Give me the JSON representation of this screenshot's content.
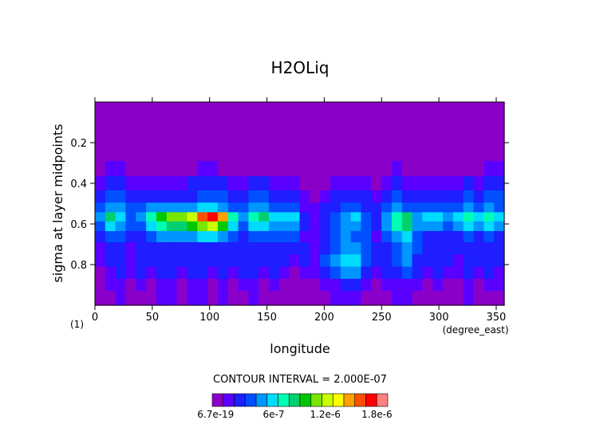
{
  "chart_data": {
    "type": "heatmap",
    "title": "H2OLiq",
    "xlabel": "longitude",
    "x_unit": "(degree_east)",
    "ylabel": "sigma at layer midpoints",
    "corner_label": "(1)",
    "xlim": [
      0,
      357
    ],
    "ylim": [
      0.0,
      1.0
    ],
    "y_inverted": true,
    "x_ticks": [
      0,
      50,
      100,
      150,
      200,
      250,
      300,
      350
    ],
    "y_ticks": [
      0.2,
      0.4,
      0.6,
      0.8
    ],
    "contour_note": "CONTOUR INTERVAL = 2.000E-07",
    "colorbar": {
      "tick_labels": [
        "6.7e-19",
        "6e-7",
        "1.2e-6",
        "1.8e-6"
      ],
      "colors": [
        "#8b00c8",
        "#5a00ff",
        "#1e1eff",
        "#0050ff",
        "#0096ff",
        "#00dcff",
        "#00ffb4",
        "#00d070",
        "#00c800",
        "#78e600",
        "#c8ff00",
        "#ffff00",
        "#ffa000",
        "#ff5000",
        "#ff0000",
        "#ff8080"
      ]
    },
    "levels": [
      {
        "sigma": 0.05,
        "values": [
          0,
          0,
          0,
          0,
          0,
          0,
          0,
          0,
          0,
          0,
          0,
          0,
          0,
          0,
          0,
          0,
          0,
          0,
          0,
          0,
          0,
          0,
          0,
          0,
          0,
          0,
          0,
          0,
          0,
          0,
          0,
          0,
          0,
          0,
          0,
          0,
          0,
          0,
          0,
          0
        ]
      },
      {
        "sigma": 0.15,
        "values": [
          0,
          0,
          0,
          0,
          0,
          0,
          0,
          0,
          0,
          0,
          0,
          0,
          0,
          0,
          0,
          0,
          0,
          0,
          0,
          0,
          0,
          0,
          0,
          0,
          0,
          0,
          0,
          0,
          0,
          0,
          0,
          0,
          0,
          0,
          0,
          0,
          0,
          0,
          0,
          0
        ]
      },
      {
        "sigma": 0.25,
        "values": [
          0,
          0,
          0,
          0,
          0,
          0,
          0,
          0,
          0,
          0,
          0,
          0,
          0,
          0,
          0,
          0,
          0,
          0,
          0,
          0,
          0,
          0,
          0,
          0,
          0,
          0,
          0,
          0,
          0,
          0,
          0,
          0,
          0,
          0,
          0,
          0,
          0,
          0,
          0,
          0
        ]
      },
      {
        "sigma": 0.33,
        "values": [
          0,
          1,
          1,
          0,
          0,
          0,
          0,
          0,
          0,
          0,
          1,
          1,
          0,
          0,
          0,
          0,
          0,
          0,
          0,
          0,
          0,
          0,
          0,
          0,
          0,
          0,
          0,
          0,
          0,
          1,
          0,
          0,
          0,
          0,
          0,
          0,
          0,
          0,
          1,
          1
        ]
      },
      {
        "sigma": 0.4,
        "values": [
          1,
          2,
          2,
          1,
          1,
          1,
          1,
          1,
          1,
          2,
          2,
          2,
          2,
          1,
          1,
          2,
          2,
          1,
          1,
          1,
          0,
          0,
          0,
          1,
          1,
          1,
          1,
          0,
          1,
          2,
          1,
          1,
          1,
          1,
          1,
          1,
          2,
          1,
          2,
          2
        ]
      },
      {
        "sigma": 0.47,
        "values": [
          2,
          3,
          3,
          2,
          2,
          2,
          2,
          2,
          2,
          2,
          3,
          3,
          3,
          2,
          2,
          3,
          3,
          2,
          2,
          2,
          1,
          0,
          1,
          2,
          2,
          2,
          2,
          1,
          2,
          3,
          2,
          2,
          2,
          2,
          2,
          2,
          3,
          2,
          3,
          3
        ]
      },
      {
        "sigma": 0.52,
        "values": [
          3,
          4,
          4,
          3,
          3,
          4,
          4,
          4,
          4,
          4,
          5,
          5,
          4,
          3,
          3,
          4,
          4,
          3,
          3,
          3,
          1,
          1,
          2,
          2,
          3,
          3,
          2,
          2,
          3,
          4,
          3,
          3,
          3,
          3,
          3,
          3,
          4,
          3,
          4,
          3
        ]
      },
      {
        "sigma": 0.565,
        "values": [
          4,
          7,
          5,
          3,
          4,
          6,
          8,
          9,
          9,
          10,
          13,
          14,
          12,
          6,
          4,
          6,
          7,
          5,
          5,
          5,
          2,
          1,
          2,
          3,
          4,
          5,
          3,
          2,
          4,
          6,
          7,
          4,
          5,
          5,
          4,
          5,
          6,
          5,
          6,
          5
        ]
      },
      {
        "sigma": 0.61,
        "values": [
          3,
          5,
          4,
          3,
          3,
          5,
          6,
          7,
          7,
          8,
          9,
          10,
          8,
          5,
          3,
          5,
          5,
          4,
          4,
          4,
          2,
          1,
          2,
          3,
          4,
          4,
          3,
          2,
          4,
          6,
          7,
          4,
          4,
          4,
          3,
          4,
          5,
          4,
          5,
          4
        ]
      },
      {
        "sigma": 0.66,
        "values": [
          2,
          3,
          3,
          2,
          2,
          3,
          4,
          4,
          4,
          4,
          5,
          5,
          4,
          3,
          2,
          3,
          3,
          3,
          3,
          3,
          1,
          1,
          2,
          3,
          4,
          3,
          3,
          1,
          3,
          4,
          5,
          3,
          2,
          2,
          2,
          2,
          3,
          2,
          3,
          2
        ]
      },
      {
        "sigma": 0.72,
        "values": [
          1,
          2,
          2,
          1,
          2,
          2,
          2,
          2,
          2,
          2,
          2,
          2,
          2,
          2,
          2,
          2,
          2,
          2,
          2,
          2,
          2,
          1,
          2,
          3,
          4,
          4,
          3,
          2,
          2,
          3,
          4,
          3,
          2,
          2,
          2,
          2,
          2,
          2,
          2,
          2
        ]
      },
      {
        "sigma": 0.78,
        "values": [
          1,
          2,
          2,
          1,
          2,
          2,
          2,
          2,
          2,
          2,
          2,
          2,
          2,
          2,
          2,
          2,
          2,
          2,
          2,
          1,
          2,
          1,
          3,
          4,
          5,
          5,
          3,
          2,
          2,
          3,
          4,
          2,
          2,
          2,
          2,
          1,
          2,
          2,
          2,
          2
        ]
      },
      {
        "sigma": 0.84,
        "values": [
          0,
          1,
          2,
          1,
          2,
          1,
          2,
          2,
          1,
          2,
          2,
          1,
          2,
          1,
          2,
          2,
          1,
          2,
          1,
          0,
          1,
          1,
          2,
          3,
          4,
          4,
          2,
          1,
          2,
          2,
          3,
          2,
          1,
          2,
          1,
          1,
          2,
          1,
          2,
          1
        ]
      },
      {
        "sigma": 0.9,
        "values": [
          0,
          1,
          1,
          0,
          1,
          0,
          1,
          1,
          0,
          1,
          1,
          0,
          1,
          0,
          1,
          1,
          0,
          1,
          0,
          0,
          0,
          0,
          1,
          1,
          2,
          2,
          1,
          0,
          1,
          1,
          1,
          1,
          0,
          1,
          0,
          0,
          1,
          0,
          1,
          1
        ]
      },
      {
        "sigma": 0.96,
        "values": [
          0,
          0,
          1,
          0,
          0,
          0,
          1,
          1,
          0,
          1,
          1,
          0,
          1,
          0,
          0,
          1,
          0,
          0,
          0,
          0,
          0,
          0,
          0,
          1,
          1,
          1,
          0,
          0,
          0,
          1,
          1,
          0,
          0,
          0,
          0,
          0,
          1,
          0,
          0,
          0
        ]
      }
    ]
  }
}
